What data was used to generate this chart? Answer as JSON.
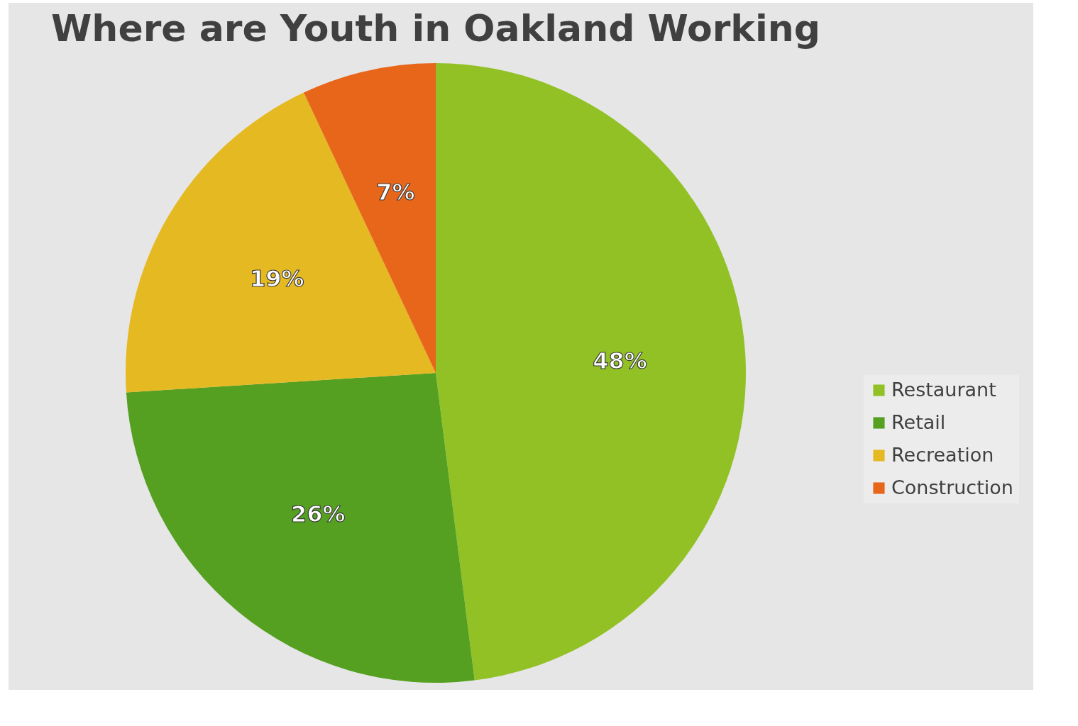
{
  "chart_data": {
    "type": "pie",
    "title": "Where are Youth in Oakland Working",
    "categories": [
      "Restaurant",
      "Retail",
      "Recreation",
      "Construction"
    ],
    "values": [
      48,
      26,
      19,
      7
    ],
    "colors": [
      "#92c126",
      "#55a021",
      "#e5b921",
      "#e8661a"
    ],
    "value_labels": [
      "48%",
      "26%",
      "19%",
      "7%"
    ],
    "legend": "right"
  }
}
